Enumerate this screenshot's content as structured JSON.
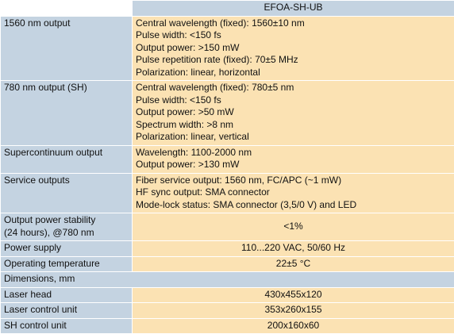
{
  "header": {
    "model": "EFOA-SH-UB"
  },
  "rows": [
    {
      "label": "1560 nm output",
      "lines": [
        "Central wavelength (fixed): 1560±10 nm",
        "Pulse width: <150 fs",
        "Output power:  >150 mW",
        "Pulse repetition rate (fixed): 70±5 MHz",
        "Polarization: linear, horizontal"
      ]
    },
    {
      "label": "780 nm output (SH)",
      "lines": [
        "Central wavelength (fixed): 780±5 nm",
        "Pulse width: <150 fs",
        "Output power:  >50 mW",
        "Spectrum width: >8 nm",
        "Polarization: linear, vertical"
      ]
    },
    {
      "label": "Supercontinuum output",
      "lines": [
        "Wavelength: 1100-2000 nm",
        "Output power: >130 mW"
      ]
    },
    {
      "label": "Service outputs",
      "lines": [
        "Fiber service output: 1560 nm, FC/APC (~1 mW)",
        "HF sync output: SMA connector",
        "Mode-lock status: SMA connector (3,5/0 V) and LED"
      ]
    }
  ],
  "stability": {
    "label_line1": "Output power stability",
    "label_line2": "(24 hours), @780 nm",
    "value": "<1%"
  },
  "power_supply": {
    "label": "Power supply",
    "value": "110...220 VAC, 50/60 Hz"
  },
  "operating_temp": {
    "label": "Operating temperature",
    "value": "22±5 °C"
  },
  "dimensions": {
    "section_label": "Dimensions, mm",
    "items": [
      {
        "label": "Laser head",
        "value": "430x455x120"
      },
      {
        "label": "Laser control unit",
        "value": "353x260x155"
      },
      {
        "label": "SH control unit",
        "value": "200x160x60"
      }
    ]
  },
  "colors": {
    "label_bg": "#c4d3e1",
    "value_bg": "#fbe2b3"
  }
}
